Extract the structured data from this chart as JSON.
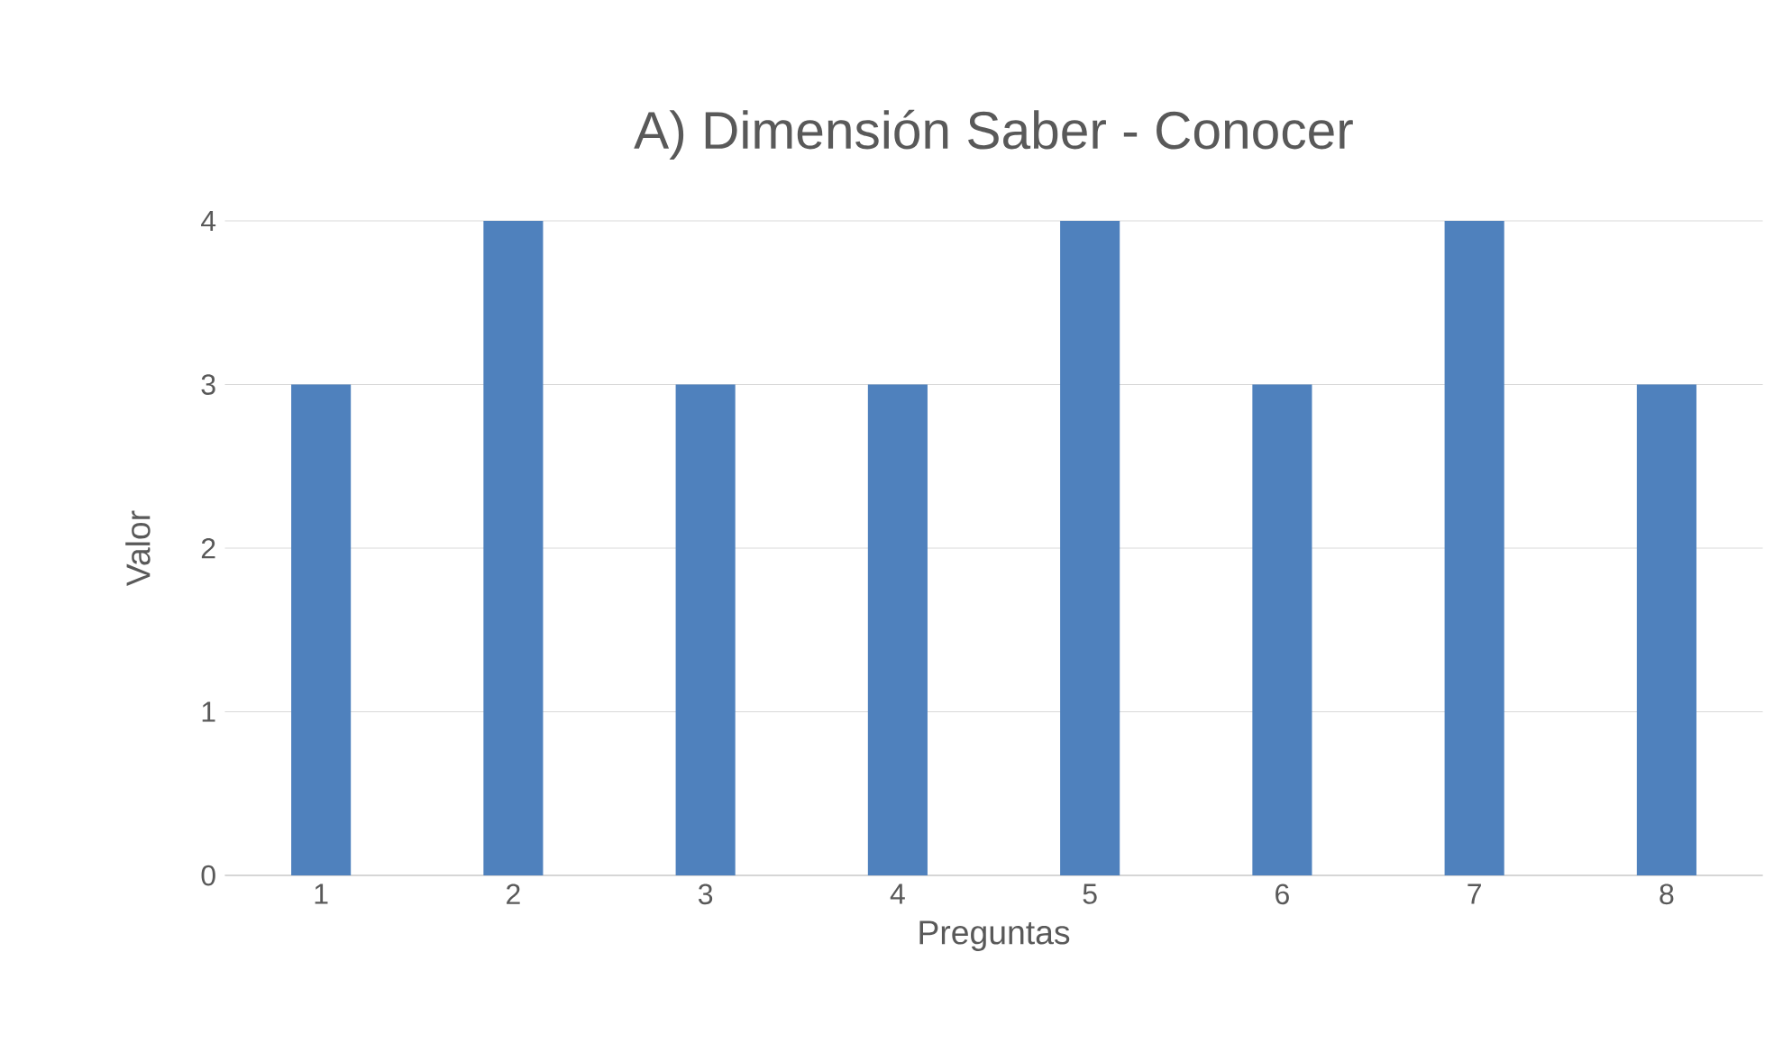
{
  "chart_data": {
    "type": "bar",
    "title": "A) Dimensión Saber - Conocer",
    "xlabel": "Preguntas",
    "ylabel": "Valor",
    "categories": [
      "1",
      "2",
      "3",
      "4",
      "5",
      "6",
      "7",
      "8"
    ],
    "values": [
      3,
      4,
      3,
      3,
      4,
      3,
      4,
      3
    ],
    "color": "#4f81bd",
    "ylim": [
      0,
      4
    ],
    "yticks": [
      0,
      1,
      2,
      3,
      4
    ],
    "grid": "y"
  }
}
